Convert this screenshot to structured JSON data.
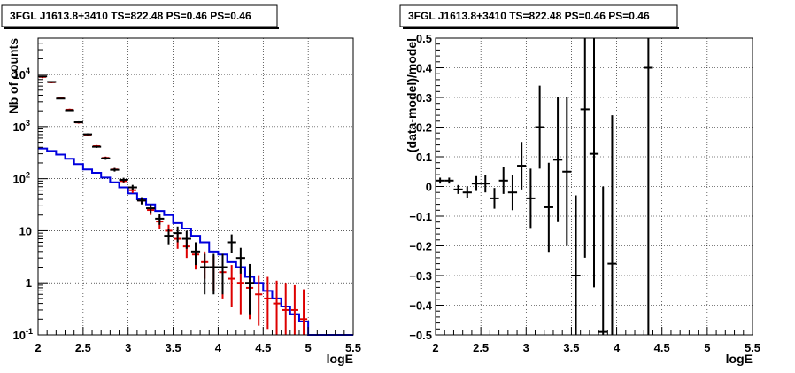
{
  "chart_data": [
    {
      "type": "line",
      "title": "3FGL J1613.8+3410 TS=822.48 PS=0.46 PS=0.46",
      "xlabel": "logE",
      "ylabel": "Nb of counts",
      "xlim": [
        2,
        5.5
      ],
      "ylim": [
        0.1,
        50000
      ],
      "y_scale": "log",
      "grid": true,
      "x_ticks": [
        "2",
        "2.5",
        "3",
        "3.5",
        "4",
        "4.5",
        "5",
        "5.5"
      ],
      "y_ticks": [
        {
          "base": "10",
          "exp": "4",
          "v": 10000
        },
        {
          "base": "10",
          "exp": "3",
          "v": 1000
        },
        {
          "base": "10",
          "exp": "2",
          "v": 100
        },
        {
          "base": "10",
          "exp": "",
          "v": 10
        },
        {
          "base": "1",
          "exp": "",
          "v": 1
        },
        {
          "base": "10",
          "exp": "-1",
          "v": 0.1
        }
      ],
      "bin_edges": [
        2.0,
        2.1,
        2.2,
        2.3,
        2.4,
        2.5,
        2.6,
        2.7,
        2.8,
        2.9,
        3.0,
        3.1,
        3.2,
        3.3,
        3.4,
        3.5,
        3.6,
        3.7,
        3.8,
        3.9,
        4.0,
        4.1,
        4.2,
        4.3,
        4.4,
        4.5,
        4.6,
        4.7,
        4.8,
        4.9,
        5.0,
        5.1,
        5.2,
        5.3,
        5.4,
        5.5
      ],
      "colors": {
        "data": "#000000",
        "model_total": "#dd0000",
        "model_source": "#0000dd"
      },
      "series": [
        {
          "role": "model_total",
          "x": [
            2.05,
            2.15,
            2.25,
            2.35,
            2.45,
            2.55,
            2.65,
            2.75,
            2.85,
            2.95,
            3.05,
            3.15,
            3.25,
            3.35,
            3.45,
            3.55,
            3.65,
            3.75,
            3.85,
            3.95,
            4.05,
            4.15,
            4.25,
            4.35,
            4.45,
            4.55,
            4.65,
            4.75,
            4.85,
            4.95
          ],
          "y": [
            9000,
            7100,
            3500,
            2100,
            1200,
            700,
            420,
            250,
            150,
            90,
            60,
            38,
            25,
            15,
            10,
            7,
            5,
            3.5,
            2.5,
            2,
            1.6,
            1.2,
            1,
            0.8,
            0.6,
            0.5,
            0.4,
            0.3,
            0.3,
            0.2
          ],
          "err_low": [
            8500,
            6800,
            3350,
            2000,
            1140,
            660,
            400,
            235,
            140,
            82,
            53,
            33,
            20,
            11,
            7,
            4.5,
            3,
            1.8,
            1.2,
            0.7,
            0.5,
            0.35,
            0.25,
            0.2,
            0.15,
            0.13,
            0.1,
            0.1,
            0.1,
            0.1
          ],
          "err_high": [
            9500,
            7400,
            3650,
            2200,
            1260,
            740,
            440,
            265,
            160,
            98,
            67,
            43,
            30,
            19,
            13,
            9.5,
            7,
            5.2,
            4,
            3.3,
            2.7,
            2.2,
            1.9,
            1.7,
            1.4,
            1.3,
            1.1,
            1.0,
            0.9,
            0.75
          ]
        },
        {
          "role": "data",
          "x": [
            2.05,
            2.15,
            2.25,
            2.35,
            2.45,
            2.55,
            2.65,
            2.75,
            2.85,
            2.95,
            3.05,
            3.15,
            3.25,
            3.35,
            3.45,
            3.55,
            3.65,
            3.75,
            3.85,
            3.95,
            4.05,
            4.15,
            4.25,
            4.35
          ],
          "y": [
            9200,
            7200,
            3450,
            2050,
            1210,
            710,
            410,
            245,
            148,
            95,
            68,
            38,
            27,
            17,
            8,
            9,
            7,
            4,
            2,
            2,
            2,
            6,
            3,
            1
          ],
          "err_low": [
            9000,
            7000,
            3350,
            1980,
            1160,
            680,
            390,
            230,
            137,
            86,
            60,
            32,
            22,
            13,
            5.5,
            6,
            4.5,
            2.2,
            0.6,
            0.6,
            0.6,
            3.8,
            1.5,
            0.25
          ],
          "err_high": [
            9400,
            7400,
            3550,
            2120,
            1260,
            740,
            430,
            260,
            160,
            104,
            76,
            44,
            32,
            21,
            11,
            12,
            10,
            6,
            3.6,
            3.6,
            3.6,
            8.5,
            4.7,
            2.3
          ]
        },
        {
          "role": "model_source",
          "steps": [
            380,
            340,
            290,
            240,
            190,
            150,
            130,
            105,
            85,
            68,
            52,
            40,
            32,
            24,
            20,
            14,
            11,
            8,
            6,
            4,
            3.5,
            2.5,
            2,
            1.3,
            1,
            0.7,
            0.5,
            0.35,
            0.25,
            0.18,
            0.1,
            0.1,
            0.1,
            0.1,
            0.1
          ]
        }
      ]
    },
    {
      "type": "scatter",
      "title": "3FGL J1613.8+3410 TS=822.48 PS=0.46 PS=0.46",
      "xlabel": "logE",
      "ylabel": "(data-model)/model",
      "xlim": [
        2,
        5.5
      ],
      "ylim": [
        -0.5,
        0.5
      ],
      "grid": true,
      "x_ticks": [
        "2",
        "2.5",
        "3",
        "3.5",
        "4",
        "4.5",
        "5",
        "5.5"
      ],
      "y_ticks": [
        "0.5",
        "0.4",
        "0.3",
        "0.2",
        "0.1",
        "0",
        "−0.1",
        "−0.2",
        "−0.3",
        "−0.4",
        "−0.5"
      ],
      "series": [
        {
          "role": "residual",
          "x": [
            2.05,
            2.15,
            2.25,
            2.35,
            2.45,
            2.55,
            2.65,
            2.75,
            2.85,
            2.95,
            3.05,
            3.15,
            3.25,
            3.35,
            3.45,
            3.55,
            3.65,
            3.75,
            3.85,
            3.95,
            4.35
          ],
          "y": [
            0.02,
            0.02,
            -0.01,
            -0.02,
            0.01,
            0.01,
            -0.04,
            0.02,
            -0.02,
            0.07,
            -0.04,
            0.2,
            -0.07,
            0.09,
            0.05,
            -0.3,
            0.26,
            0.11,
            -0.49,
            -0.26,
            0.4
          ],
          "err": [
            0.01,
            0.01,
            0.015,
            0.02,
            0.025,
            0.03,
            0.035,
            0.045,
            0.06,
            0.08,
            0.1,
            0.14,
            0.15,
            0.21,
            0.25,
            0.27,
            0.5,
            0.45,
            0.49,
            0.5,
            1.0
          ]
        }
      ]
    }
  ]
}
